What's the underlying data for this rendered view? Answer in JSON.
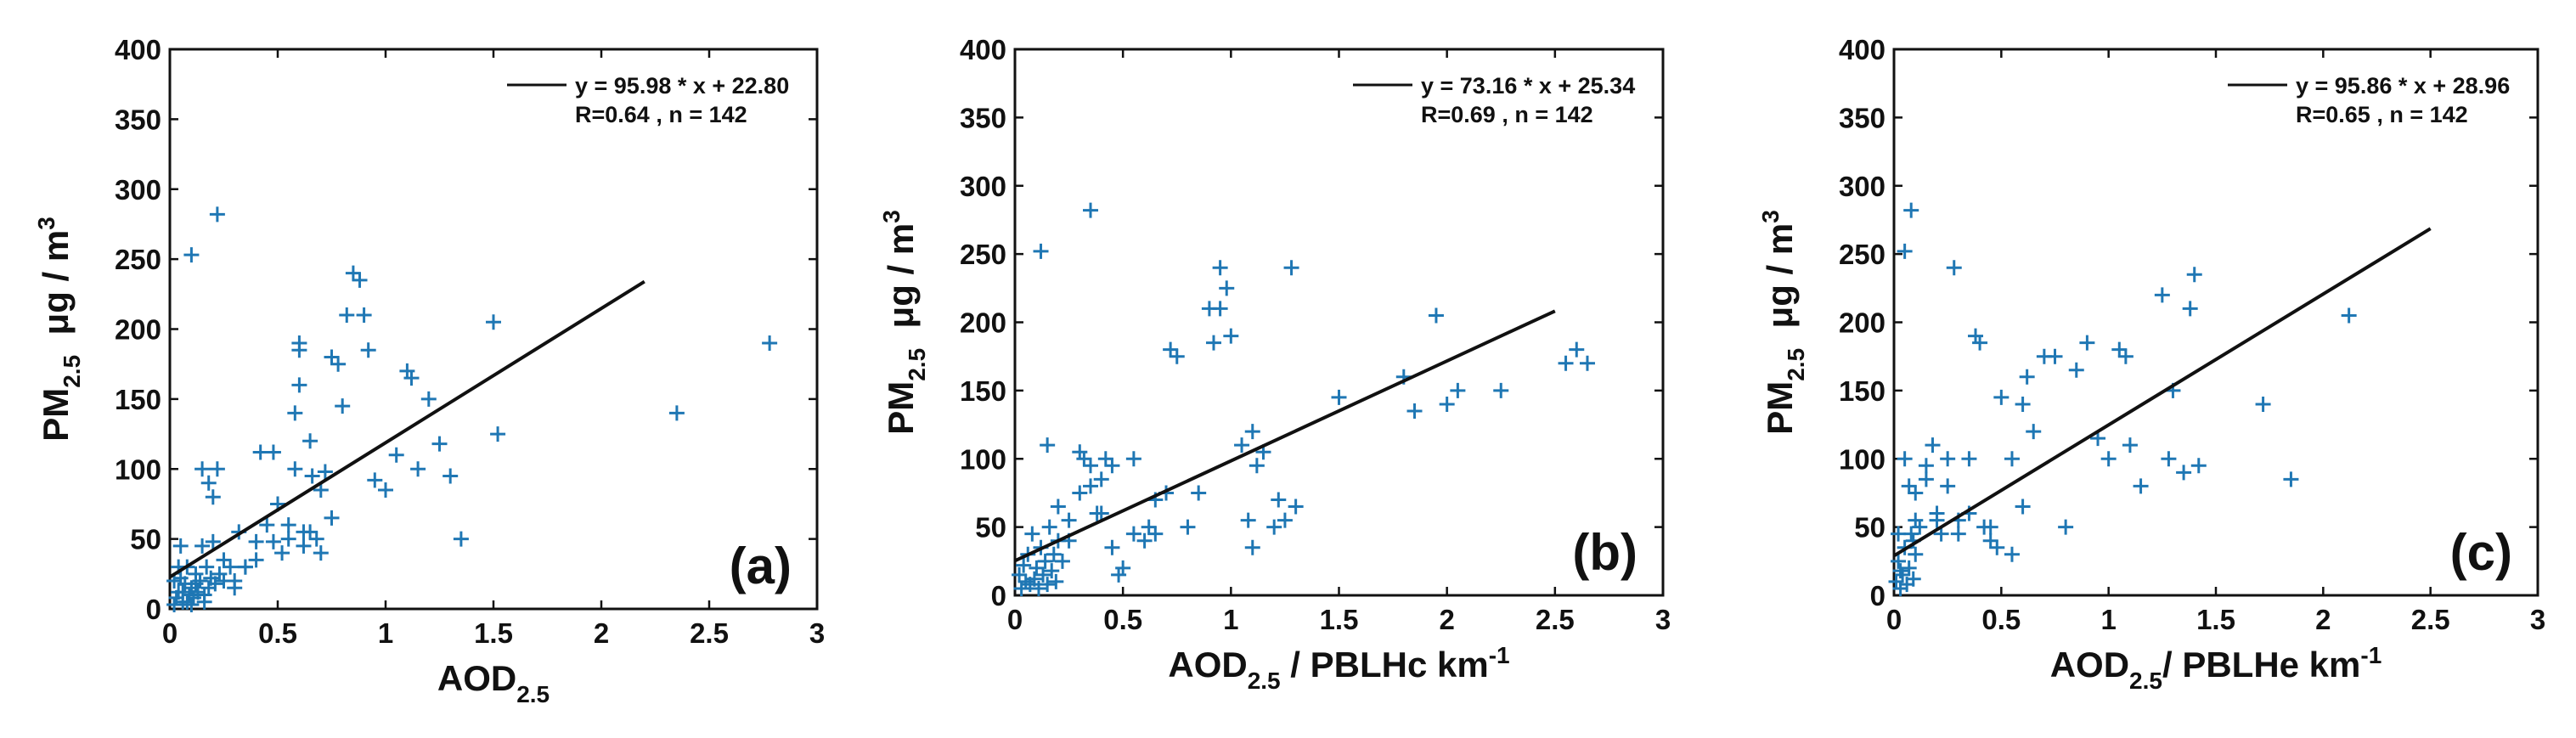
{
  "figure": {
    "background": "#ffffff"
  },
  "style": {
    "marker_color": "#1f77b4",
    "line_color": "#111111",
    "axis_color": "#111111"
  },
  "chart_data": [
    {
      "type": "scatter",
      "panel_tag": "(a)",
      "xlabel": {
        "main": "AOD",
        "sub": "2.5",
        "rest": "",
        "sup": ""
      },
      "ylabel": {
        "main": "PM",
        "sub": "2.5",
        "unit": "μg / m",
        "sup": "3"
      },
      "xlim": [
        0,
        3
      ],
      "ylim": [
        0,
        400
      ],
      "xticks": [
        "0",
        "0.5",
        "1",
        "1.5",
        "2",
        "2.5",
        "3"
      ],
      "yticks": [
        "0",
        "50",
        "100",
        "150",
        "200",
        "250",
        "300",
        "350",
        "400"
      ],
      "legend": {
        "line1": "y = 95.98 * x + 22.80",
        "line2": "R=0.64 , n = 142",
        "location": "top-right"
      },
      "fit": {
        "slope": 95.98,
        "intercept": 22.8,
        "x_range": [
          0,
          2.2
        ]
      },
      "points": [
        [
          0.1,
          253
        ],
        [
          0.22,
          282
        ],
        [
          0.02,
          20
        ],
        [
          0.03,
          8
        ],
        [
          0.04,
          12
        ],
        [
          0.05,
          22
        ],
        [
          0.06,
          5
        ],
        [
          0.07,
          18
        ],
        [
          0.08,
          30
        ],
        [
          0.09,
          10
        ],
        [
          0.1,
          15
        ],
        [
          0.11,
          8
        ],
        [
          0.12,
          25
        ],
        [
          0.13,
          12
        ],
        [
          0.14,
          20
        ],
        [
          0.15,
          45
        ],
        [
          0.16,
          10
        ],
        [
          0.17,
          30
        ],
        [
          0.18,
          15
        ],
        [
          0.19,
          22
        ],
        [
          0.2,
          48
        ],
        [
          0.21,
          18
        ],
        [
          0.23,
          25
        ],
        [
          0.15,
          100
        ],
        [
          0.2,
          80
        ],
        [
          0.18,
          90
        ],
        [
          0.22,
          100
        ],
        [
          0.25,
          35
        ],
        [
          0.28,
          30
        ],
        [
          0.3,
          20
        ],
        [
          0.32,
          55
        ],
        [
          0.35,
          30
        ],
        [
          0.4,
          48
        ],
        [
          0.42,
          112
        ],
        [
          0.45,
          60
        ],
        [
          0.48,
          112
        ],
        [
          0.5,
          75
        ],
        [
          0.52,
          40
        ],
        [
          0.55,
          60
        ],
        [
          0.58,
          140
        ],
        [
          0.6,
          190
        ],
        [
          0.62,
          55
        ],
        [
          0.65,
          120
        ],
        [
          0.68,
          50
        ],
        [
          0.7,
          85
        ],
        [
          0.72,
          98
        ],
        [
          0.75,
          180
        ],
        [
          0.78,
          175
        ],
        [
          0.8,
          145
        ],
        [
          0.82,
          210
        ],
        [
          0.85,
          240
        ],
        [
          0.88,
          235
        ],
        [
          0.9,
          210
        ],
        [
          0.92,
          185
        ],
        [
          0.95,
          92
        ],
        [
          0.6,
          185
        ],
        [
          0.6,
          160
        ],
        [
          1.0,
          85
        ],
        [
          1.05,
          110
        ],
        [
          1.1,
          170
        ],
        [
          1.12,
          165
        ],
        [
          1.15,
          100
        ],
        [
          1.2,
          150
        ],
        [
          1.25,
          118
        ],
        [
          1.3,
          95
        ],
        [
          1.35,
          50
        ],
        [
          1.5,
          205
        ],
        [
          1.52,
          125
        ],
        [
          2.35,
          140
        ],
        [
          2.78,
          190
        ],
        [
          0.62,
          45
        ],
        [
          0.55,
          50
        ],
        [
          0.65,
          55
        ],
        [
          0.7,
          40
        ],
        [
          0.75,
          65
        ],
        [
          0.58,
          100
        ],
        [
          0.66,
          95
        ],
        [
          0.48,
          48
        ],
        [
          0.4,
          35
        ],
        [
          0.35,
          30
        ],
        [
          0.3,
          15
        ],
        [
          0.25,
          20
        ],
        [
          0.05,
          45
        ],
        [
          0.08,
          5
        ],
        [
          0.12,
          18
        ],
        [
          0.16,
          5
        ],
        [
          0.02,
          3
        ],
        [
          0.04,
          30
        ],
        [
          0.06,
          12
        ],
        [
          0.1,
          3
        ]
      ]
    },
    {
      "type": "scatter",
      "panel_tag": "(b)",
      "xlabel": {
        "main": "AOD",
        "sub": "2.5",
        "rest": " / PBLHc km",
        "sup": "-1"
      },
      "ylabel": {
        "main": "PM",
        "sub": "2.5",
        "unit": "μg / m",
        "sup": "3"
      },
      "xlim": [
        0,
        3
      ],
      "ylim": [
        0,
        400
      ],
      "xticks": [
        "0",
        "0.5",
        "1",
        "1.5",
        "2",
        "2.5",
        "3"
      ],
      "yticks": [
        "0",
        "50",
        "100",
        "150",
        "200",
        "250",
        "300",
        "350",
        "400"
      ],
      "legend": {
        "line1": "y = 73.16 * x + 25.34",
        "line2": "R=0.69 , n = 142",
        "location": "top-right"
      },
      "fit": {
        "slope": 73.16,
        "intercept": 25.34,
        "x_range": [
          0,
          2.5
        ]
      },
      "points": [
        [
          0.12,
          252
        ],
        [
          0.35,
          282
        ],
        [
          0.02,
          15
        ],
        [
          0.03,
          5
        ],
        [
          0.04,
          22
        ],
        [
          0.05,
          10
        ],
        [
          0.06,
          30
        ],
        [
          0.07,
          8
        ],
        [
          0.08,
          45
        ],
        [
          0.09,
          12
        ],
        [
          0.1,
          20
        ],
        [
          0.11,
          5
        ],
        [
          0.12,
          35
        ],
        [
          0.13,
          15
        ],
        [
          0.14,
          25
        ],
        [
          0.15,
          8
        ],
        [
          0.16,
          50
        ],
        [
          0.17,
          18
        ],
        [
          0.18,
          30
        ],
        [
          0.19,
          10
        ],
        [
          0.2,
          40
        ],
        [
          0.22,
          25
        ],
        [
          0.25,
          55
        ],
        [
          0.3,
          75
        ],
        [
          0.32,
          100
        ],
        [
          0.35,
          95
        ],
        [
          0.38,
          60
        ],
        [
          0.4,
          85
        ],
        [
          0.42,
          100
        ],
        [
          0.45,
          95
        ],
        [
          0.48,
          15
        ],
        [
          0.5,
          20
        ],
        [
          0.55,
          100
        ],
        [
          0.6,
          40
        ],
        [
          0.62,
          50
        ],
        [
          0.65,
          45
        ],
        [
          0.7,
          75
        ],
        [
          0.72,
          180
        ],
        [
          0.75,
          175
        ],
        [
          0.8,
          50
        ],
        [
          0.85,
          75
        ],
        [
          0.9,
          210
        ],
        [
          0.92,
          185
        ],
        [
          0.95,
          240
        ],
        [
          0.98,
          225
        ],
        [
          1.0,
          190
        ],
        [
          1.05,
          110
        ],
        [
          1.08,
          55
        ],
        [
          1.1,
          35
        ],
        [
          1.12,
          95
        ],
        [
          1.15,
          105
        ],
        [
          1.2,
          50
        ],
        [
          1.22,
          70
        ],
        [
          1.25,
          55
        ],
        [
          1.28,
          240
        ],
        [
          1.3,
          65
        ],
        [
          1.5,
          145
        ],
        [
          1.8,
          160
        ],
        [
          1.85,
          135
        ],
        [
          1.95,
          205
        ],
        [
          2.0,
          140
        ],
        [
          2.05,
          150
        ],
        [
          2.25,
          150
        ],
        [
          2.55,
          170
        ],
        [
          2.6,
          180
        ],
        [
          2.65,
          170
        ],
        [
          0.15,
          110
        ],
        [
          0.2,
          65
        ],
        [
          0.25,
          40
        ],
        [
          0.3,
          105
        ],
        [
          0.35,
          80
        ],
        [
          0.4,
          60
        ],
        [
          0.45,
          35
        ],
        [
          0.55,
          45
        ],
        [
          0.65,
          70
        ],
        [
          0.95,
          210
        ],
        [
          1.1,
          120
        ]
      ]
    },
    {
      "type": "scatter",
      "panel_tag": "(c)",
      "xlabel": {
        "main": "AOD",
        "sub": "2.5",
        "rest": "/ PBLHe km",
        "sup": "-1"
      },
      "ylabel": {
        "main": "PM",
        "sub": "2.5",
        "unit": "μg / m",
        "sup": "3"
      },
      "xlim": [
        0,
        3
      ],
      "ylim": [
        0,
        400
      ],
      "xticks": [
        "0",
        "0.5",
        "1",
        "1.5",
        "2",
        "2.5",
        "3"
      ],
      "yticks": [
        "0",
        "50",
        "100",
        "150",
        "200",
        "250",
        "300",
        "350",
        "400"
      ],
      "legend": {
        "line1": "y = 95.86 * x + 28.96",
        "line2": "R=0.65 , n = 142",
        "location": "top-right"
      },
      "fit": {
        "slope": 95.86,
        "intercept": 28.96,
        "x_range": [
          0,
          2.5
        ]
      },
      "points": [
        [
          0.05,
          252
        ],
        [
          0.08,
          282
        ],
        [
          0.01,
          10
        ],
        [
          0.02,
          25
        ],
        [
          0.03,
          5
        ],
        [
          0.04,
          15
        ],
        [
          0.05,
          35
        ],
        [
          0.06,
          8
        ],
        [
          0.07,
          20
        ],
        [
          0.08,
          45
        ],
        [
          0.09,
          12
        ],
        [
          0.1,
          30
        ],
        [
          0.12,
          50
        ],
        [
          0.15,
          95
        ],
        [
          0.18,
          110
        ],
        [
          0.2,
          55
        ],
        [
          0.22,
          45
        ],
        [
          0.25,
          80
        ],
        [
          0.28,
          240
        ],
        [
          0.3,
          55
        ],
        [
          0.35,
          100
        ],
        [
          0.38,
          190
        ],
        [
          0.4,
          185
        ],
        [
          0.42,
          50
        ],
        [
          0.45,
          40
        ],
        [
          0.48,
          35
        ],
        [
          0.5,
          145
        ],
        [
          0.55,
          100
        ],
        [
          0.6,
          140
        ],
        [
          0.62,
          160
        ],
        [
          0.65,
          120
        ],
        [
          0.7,
          175
        ],
        [
          0.75,
          175
        ],
        [
          0.8,
          50
        ],
        [
          0.85,
          165
        ],
        [
          0.9,
          185
        ],
        [
          0.95,
          115
        ],
        [
          1.0,
          100
        ],
        [
          1.05,
          180
        ],
        [
          1.08,
          175
        ],
        [
          1.1,
          110
        ],
        [
          1.15,
          80
        ],
        [
          1.25,
          220
        ],
        [
          1.28,
          100
        ],
        [
          1.3,
          150
        ],
        [
          1.35,
          90
        ],
        [
          1.38,
          210
        ],
        [
          1.4,
          235
        ],
        [
          1.42,
          95
        ],
        [
          1.72,
          140
        ],
        [
          1.85,
          85
        ],
        [
          2.12,
          205
        ],
        [
          0.1,
          75
        ],
        [
          0.15,
          85
        ],
        [
          0.2,
          60
        ],
        [
          0.3,
          45
        ],
        [
          0.35,
          60
        ],
        [
          0.45,
          50
        ],
        [
          0.55,
          30
        ],
        [
          0.6,
          65
        ],
        [
          0.25,
          100
        ],
        [
          0.05,
          100
        ],
        [
          0.07,
          80
        ],
        [
          0.09,
          40
        ],
        [
          0.1,
          55
        ],
        [
          0.02,
          45
        ],
        [
          0.03,
          18
        ]
      ]
    }
  ]
}
